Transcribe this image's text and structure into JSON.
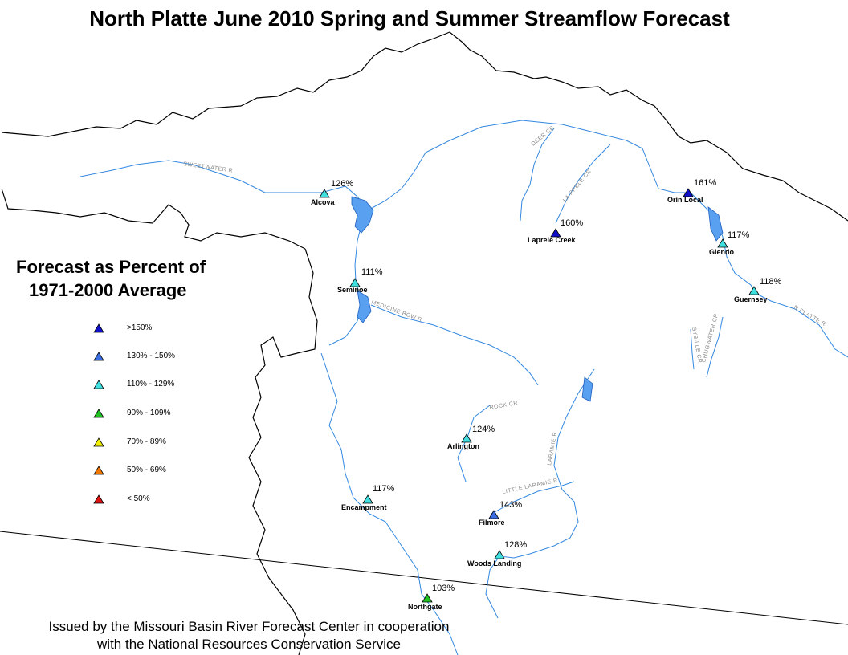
{
  "title": "North Platte June 2010 Spring and Summer Streamflow Forecast",
  "legend": {
    "title_line1": "Forecast as Percent of",
    "title_line2": "1971-2000 Average",
    "items": [
      {
        "label": ">150%",
        "color": "#1010c8"
      },
      {
        "label": "130% - 150%",
        "color": "#3a6ee0"
      },
      {
        "label": "110% - 129%",
        "color": "#40e0e0"
      },
      {
        "label": "90% - 109%",
        "color": "#20c020"
      },
      {
        "label": "70% - 89%",
        "color": "#f0f000"
      },
      {
        "label": "50% - 69%",
        "color": "#f07800"
      },
      {
        "label": "< 50%",
        "color": "#e01010"
      }
    ]
  },
  "stations": [
    {
      "name": "Alcova",
      "percent": "126%",
      "color": "#40e0e0"
    },
    {
      "name": "Seminoe",
      "percent": "111%",
      "color": "#40e0e0"
    },
    {
      "name": "Laprele Creek",
      "percent": "160%",
      "color": "#1010c8"
    },
    {
      "name": "Orin Local",
      "percent": "161%",
      "color": "#1010c8"
    },
    {
      "name": "Glendo",
      "percent": "117%",
      "color": "#40e0e0"
    },
    {
      "name": "Guernsey",
      "percent": "118%",
      "color": "#40e0e0"
    },
    {
      "name": "Arlington",
      "percent": "124%",
      "color": "#40e0e0"
    },
    {
      "name": "Encampment",
      "percent": "117%",
      "color": "#40e0e0"
    },
    {
      "name": "Filmore",
      "percent": "143%",
      "color": "#3a6ee0"
    },
    {
      "name": "Woods Landing",
      "percent": "128%",
      "color": "#40e0e0"
    },
    {
      "name": "Northgate",
      "percent": "103%",
      "color": "#20c020"
    }
  ],
  "rivers": {
    "sweetwater": "SWEETWATER R",
    "deer": "DEER CR",
    "laprele": "LA PRELE CR",
    "medicine_bow": "MEDICINE BOW R",
    "rock": "ROCK CR",
    "laramie": "LARAMIE R",
    "little_laramie": "LITTLE LARAMIE R",
    "n_platte": "N PLATTE R",
    "sybille": "SYBILLE CR",
    "chugwater": "CHUGWATER CR"
  },
  "footer": {
    "line1": "Issued by the Missouri Basin River Forecast Center in cooperation",
    "line2": "with the National Resources Conservation Service"
  }
}
